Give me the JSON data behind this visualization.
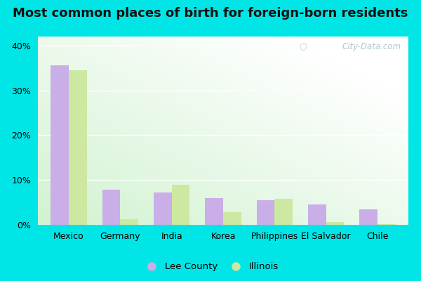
{
  "title": "Most common places of birth for foreign-born residents",
  "categories": [
    "Mexico",
    "Germany",
    "India",
    "Korea",
    "Philippines",
    "El Salvador",
    "Chile"
  ],
  "lee_county": [
    35.5,
    7.8,
    7.2,
    6.0,
    5.5,
    4.5,
    3.5
  ],
  "illinois": [
    34.5,
    1.2,
    9.0,
    2.8,
    5.8,
    0.6,
    0.2
  ],
  "lee_color": "#c9aee8",
  "illinois_color": "#cde8a0",
  "ylim": [
    0,
    42
  ],
  "yticks": [
    0,
    10,
    20,
    30,
    40
  ],
  "yticklabels": [
    "0%",
    "10%",
    "20%",
    "30%",
    "40%"
  ],
  "background_cyan": "#00e5e5",
  "watermark": "City-Data.com",
  "legend_lee": "Lee County",
  "legend_illinois": "Illinois",
  "bar_width": 0.35,
  "title_fontsize": 13,
  "tick_fontsize": 9
}
